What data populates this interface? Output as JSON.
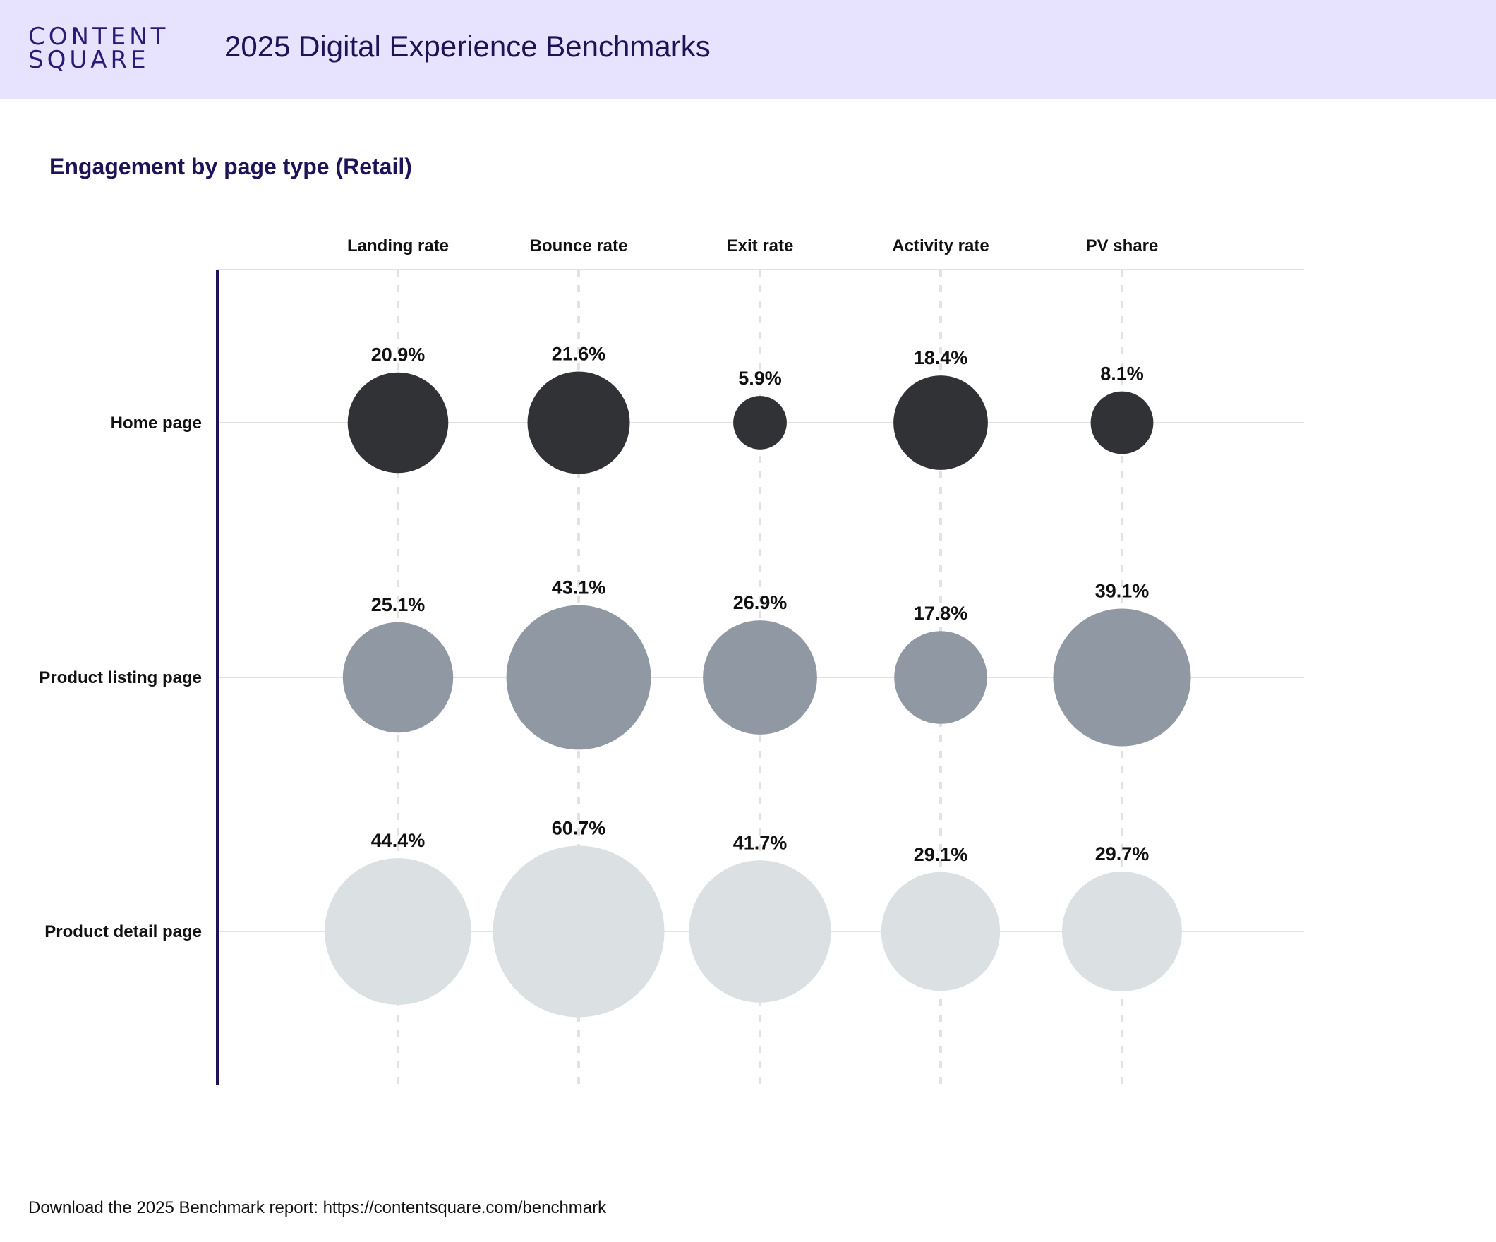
{
  "header": {
    "logo_line1": "CONTENT",
    "logo_line2": "SQUARE",
    "title": "2025 Digital Experience Benchmarks",
    "background": "#e7e3ff"
  },
  "footer": {
    "text": "Download the 2025 Benchmark report: https://contentsquare.com/benchmark"
  },
  "chart_data": {
    "type": "bubble-matrix",
    "title": "Engagement by page type (Retail)",
    "columns": [
      "Landing rate",
      "Bounce rate",
      "Exit rate",
      "Activity rate",
      "PV share"
    ],
    "rows": [
      {
        "name": "Home page",
        "color": "#303236",
        "values": [
          20.9,
          21.6,
          5.9,
          18.4,
          8.1
        ],
        "labels": [
          "20.9%",
          "21.6%",
          "5.9%",
          "18.4%",
          "8.1%"
        ]
      },
      {
        "name": "Product listing page",
        "color": "#9098a4",
        "values": [
          25.1,
          43.1,
          26.9,
          17.8,
          39.1
        ],
        "labels": [
          "25.1%",
          "43.1%",
          "26.9%",
          "17.8%",
          "39.1%"
        ]
      },
      {
        "name": "Product detail page",
        "color": "#dbe1e3",
        "values": [
          44.4,
          60.7,
          41.7,
          29.1,
          29.7
        ],
        "labels": [
          "44.4%",
          "60.7%",
          "41.7%",
          "29.1%",
          "29.7%"
        ]
      }
    ],
    "axis_color": "#1f1357",
    "grid_color": "#e2e2e2"
  }
}
